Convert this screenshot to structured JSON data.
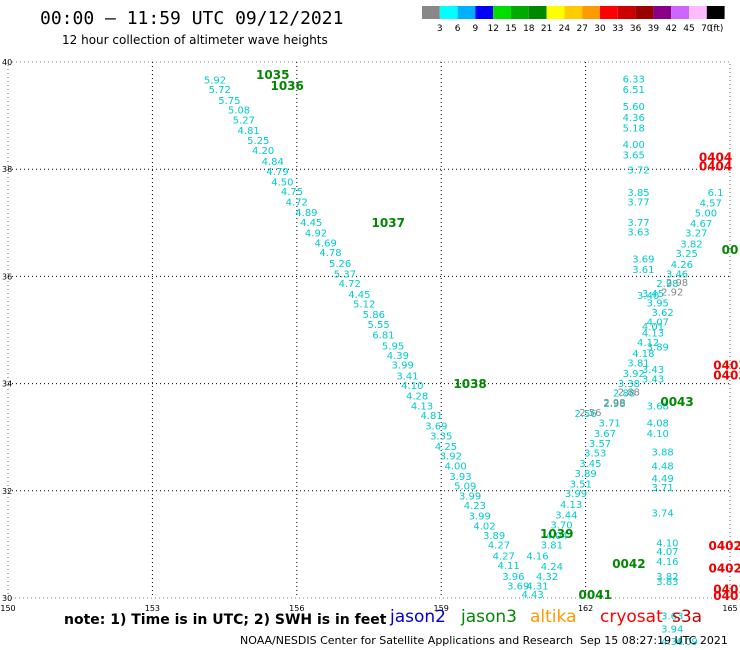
{
  "header": {
    "title": "00:00 – 11:59 UTC 09/12/2021",
    "subtitle": "12 hour collection of altimeter wave heights"
  },
  "colorbar": {
    "colors": [
      "#888888",
      "#00ffff",
      "#00b0ff",
      "#0000ff",
      "#00dd00",
      "#00aa00",
      "#008800",
      "#ffff00",
      "#ffcc00",
      "#ff9900",
      "#ff0000",
      "#cc0000",
      "#990000",
      "#880088",
      "#cc66ff",
      "#ffbbff",
      "#000000"
    ],
    "labels": [
      "3",
      "6",
      "9",
      "12",
      "15",
      "18",
      "21",
      "24",
      "27",
      "30",
      "33",
      "36",
      "39",
      "42",
      "45",
      "70"
    ],
    "unit": "(ft)"
  },
  "footer": {
    "note": "note:  1) Time is in UTC;  2) SWH is in feet",
    "satellites": [
      {
        "name": "jason2",
        "color": "#0000cc"
      },
      {
        "name": "jason3",
        "color": "#008800"
      },
      {
        "name": "altika",
        "color": "#ff9900"
      },
      {
        "name": "cryosat",
        "color": "#ff0000"
      },
      {
        "name": "s3a",
        "color": "#cc0000"
      }
    ],
    "credit": "NOAA/NESDIS Center for Satellite Applications and Research",
    "timestamp": "Sep 15 08:27:19 UTC 2021"
  },
  "chart_data": {
    "type": "scatter",
    "xlim": [
      150,
      165
    ],
    "ylim": [
      30,
      40
    ],
    "x_ticks": [
      150,
      153,
      156,
      159,
      162,
      165
    ],
    "y_ticks": [
      30,
      32,
      34,
      36,
      38,
      40
    ],
    "grid": true,
    "colors": {
      "wave": "#00cccc",
      "wave_low": "#888888",
      "time": "#008800",
      "time_red": "#ee0000"
    },
    "heights": [
      {
        "x": 154.3,
        "y": 39.6,
        "t": "5.92"
      },
      {
        "x": 154.4,
        "y": 39.42,
        "t": "5.72"
      },
      {
        "x": 154.6,
        "y": 39.22,
        "t": "5.75"
      },
      {
        "x": 154.8,
        "y": 39.04,
        "t": "5.08"
      },
      {
        "x": 154.9,
        "y": 38.85,
        "t": "5.27"
      },
      {
        "x": 155.0,
        "y": 38.66,
        "t": "4.81"
      },
      {
        "x": 155.2,
        "y": 38.47,
        "t": "5.25"
      },
      {
        "x": 155.3,
        "y": 38.28,
        "t": "4.20"
      },
      {
        "x": 155.5,
        "y": 38.08,
        "t": "4.84"
      },
      {
        "x": 155.6,
        "y": 37.89,
        "t": "4.79"
      },
      {
        "x": 155.7,
        "y": 37.7,
        "t": "4.50"
      },
      {
        "x": 155.9,
        "y": 37.52,
        "t": "4.75"
      },
      {
        "x": 156.0,
        "y": 37.32,
        "t": "4.72"
      },
      {
        "x": 156.2,
        "y": 37.13,
        "t": "4.89"
      },
      {
        "x": 156.3,
        "y": 36.94,
        "t": "4.45"
      },
      {
        "x": 156.4,
        "y": 36.74,
        "t": "4.92"
      },
      {
        "x": 156.6,
        "y": 36.56,
        "t": "4.69"
      },
      {
        "x": 156.7,
        "y": 36.38,
        "t": "4.78"
      },
      {
        "x": 156.9,
        "y": 36.18,
        "t": "5.26"
      },
      {
        "x": 157.0,
        "y": 35.98,
        "t": "5.37"
      },
      {
        "x": 157.1,
        "y": 35.8,
        "t": "4.72"
      },
      {
        "x": 157.3,
        "y": 35.6,
        "t": "4.45"
      },
      {
        "x": 157.4,
        "y": 35.42,
        "t": "5.12"
      },
      {
        "x": 157.6,
        "y": 35.22,
        "t": "5.86"
      },
      {
        "x": 157.7,
        "y": 35.04,
        "t": "5.55"
      },
      {
        "x": 157.8,
        "y": 34.84,
        "t": "6.81"
      },
      {
        "x": 158.0,
        "y": 34.64,
        "t": "5.95"
      },
      {
        "x": 158.1,
        "y": 34.46,
        "t": "4.39"
      },
      {
        "x": 158.2,
        "y": 34.28,
        "t": "3.99"
      },
      {
        "x": 158.3,
        "y": 34.08,
        "t": "3.41"
      },
      {
        "x": 158.4,
        "y": 33.9,
        "t": "4.10"
      },
      {
        "x": 158.5,
        "y": 33.7,
        "t": "4.28"
      },
      {
        "x": 158.6,
        "y": 33.52,
        "t": "4.13"
      },
      {
        "x": 158.8,
        "y": 33.34,
        "t": "4.81"
      },
      {
        "x": 158.9,
        "y": 33.14,
        "t": "3.69"
      },
      {
        "x": 159.0,
        "y": 32.96,
        "t": "3.35"
      },
      {
        "x": 159.1,
        "y": 32.76,
        "t": "4.25"
      },
      {
        "x": 159.2,
        "y": 32.58,
        "t": "3.92"
      },
      {
        "x": 159.3,
        "y": 32.4,
        "t": "4.00"
      },
      {
        "x": 159.4,
        "y": 32.2,
        "t": "3.93"
      },
      {
        "x": 159.5,
        "y": 32.02,
        "t": "5.09"
      },
      {
        "x": 159.6,
        "y": 31.84,
        "t": "3.99"
      },
      {
        "x": 159.7,
        "y": 31.66,
        "t": "4.23"
      },
      {
        "x": 159.8,
        "y": 31.46,
        "t": "3.99"
      },
      {
        "x": 159.9,
        "y": 31.28,
        "t": "4.02"
      },
      {
        "x": 160.1,
        "y": 31.1,
        "t": "3.89"
      },
      {
        "x": 160.2,
        "y": 30.92,
        "t": "4.27"
      },
      {
        "x": 160.3,
        "y": 30.72,
        "t": "4.27"
      },
      {
        "x": 160.4,
        "y": 30.54,
        "t": "4.11"
      },
      {
        "x": 160.5,
        "y": 30.34,
        "t": "3.96"
      },
      {
        "x": 160.6,
        "y": 30.16,
        "t": "3.69"
      },
      {
        "x": 161.0,
        "y": 30.16,
        "t": "4.31"
      },
      {
        "x": 160.9,
        "y": 30.0,
        "t": "4.43"
      },
      {
        "x": 161.2,
        "y": 30.34,
        "t": "4.32"
      },
      {
        "x": 161.3,
        "y": 30.52,
        "t": "4.24"
      },
      {
        "x": 161.0,
        "y": 30.72,
        "t": "4.16"
      },
      {
        "x": 161.3,
        "y": 30.92,
        "t": "3.81"
      },
      {
        "x": 161.4,
        "y": 31.1,
        "t": "4.04"
      },
      {
        "x": 161.5,
        "y": 31.3,
        "t": "3.70"
      },
      {
        "x": 161.6,
        "y": 31.48,
        "t": "3.44"
      },
      {
        "x": 161.7,
        "y": 31.68,
        "t": "4.13"
      },
      {
        "x": 161.8,
        "y": 31.88,
        "t": "3.99"
      },
      {
        "x": 161.9,
        "y": 32.06,
        "t": "3.51"
      },
      {
        "x": 162.0,
        "y": 32.26,
        "t": "3.89"
      },
      {
        "x": 162.1,
        "y": 32.44,
        "t": "3.45"
      },
      {
        "x": 162.2,
        "y": 32.64,
        "t": "3.53"
      },
      {
        "x": 162.3,
        "y": 32.82,
        "t": "3.57"
      },
      {
        "x": 162.4,
        "y": 33.0,
        "t": "3.67"
      },
      {
        "x": 162.5,
        "y": 33.2,
        "t": "3.71"
      },
      {
        "x": 162.0,
        "y": 33.38,
        "t": "2.56"
      },
      {
        "x": 162.6,
        "y": 33.56,
        "t": "2.98"
      },
      {
        "x": 162.8,
        "y": 33.76,
        "t": "2.88"
      },
      {
        "x": 162.9,
        "y": 33.94,
        "t": "3.38"
      },
      {
        "x": 163.0,
        "y": 34.12,
        "t": "3.92"
      },
      {
        "x": 163.1,
        "y": 34.32,
        "t": "3.81"
      },
      {
        "x": 163.2,
        "y": 34.5,
        "t": "4.18"
      },
      {
        "x": 163.3,
        "y": 34.7,
        "t": "4.12"
      },
      {
        "x": 163.4,
        "y": 34.88,
        "t": "4.13"
      },
      {
        "x": 163.5,
        "y": 35.08,
        "t": "4.07"
      },
      {
        "x": 163.6,
        "y": 35.26,
        "t": "3.62"
      },
      {
        "x": 163.5,
        "y": 35.44,
        "t": "3.95"
      },
      {
        "x": 163.4,
        "y": 35.62,
        "t": "3.45"
      },
      {
        "x": 163.7,
        "y": 35.8,
        "t": "2.98"
      },
      {
        "x": 163.9,
        "y": 35.98,
        "t": "3.46"
      },
      {
        "x": 164.0,
        "y": 36.16,
        "t": "4.26"
      },
      {
        "x": 164.1,
        "y": 36.36,
        "t": "3.25"
      },
      {
        "x": 164.2,
        "y": 36.54,
        "t": "3.82"
      },
      {
        "x": 164.3,
        "y": 36.74,
        "t": "3.27"
      },
      {
        "x": 164.4,
        "y": 36.92,
        "t": "4.67"
      },
      {
        "x": 164.5,
        "y": 37.12,
        "t": "5.00"
      },
      {
        "x": 164.6,
        "y": 37.3,
        "t": "4.57"
      },
      {
        "x": 164.7,
        "y": 37.5,
        "t": "6.1"
      },
      {
        "x": 163.0,
        "y": 39.62,
        "t": "6.33"
      },
      {
        "x": 163.0,
        "y": 39.42,
        "t": "6.51"
      },
      {
        "x": 163.0,
        "y": 39.1,
        "t": "5.60"
      },
      {
        "x": 163.0,
        "y": 38.9,
        "t": "4.36"
      },
      {
        "x": 163.0,
        "y": 38.7,
        "t": "5.18"
      },
      {
        "x": 163.0,
        "y": 38.4,
        "t": "4.00"
      },
      {
        "x": 163.0,
        "y": 38.2,
        "t": "3.65"
      },
      {
        "x": 163.1,
        "y": 37.92,
        "t": "3.72"
      },
      {
        "x": 163.1,
        "y": 37.5,
        "t": "3.85"
      },
      {
        "x": 163.1,
        "y": 37.32,
        "t": "3.77"
      },
      {
        "x": 163.1,
        "y": 36.94,
        "t": "3.77"
      },
      {
        "x": 163.1,
        "y": 36.76,
        "t": "3.63"
      },
      {
        "x": 163.2,
        "y": 36.26,
        "t": "3.69"
      },
      {
        "x": 163.2,
        "y": 36.06,
        "t": "3.61"
      },
      {
        "x": 163.3,
        "y": 35.58,
        "t": "3.40"
      },
      {
        "x": 163.4,
        "y": 35.0,
        "t": "4.01"
      },
      {
        "x": 163.5,
        "y": 34.62,
        "t": "3.89"
      },
      {
        "x": 163.4,
        "y": 34.2,
        "t": "3.43"
      },
      {
        "x": 163.4,
        "y": 34.02,
        "t": "3.43"
      },
      {
        "x": 163.5,
        "y": 33.52,
        "t": "3.68"
      },
      {
        "x": 163.5,
        "y": 33.2,
        "t": "4.08"
      },
      {
        "x": 163.5,
        "y": 33.0,
        "t": "4.10"
      },
      {
        "x": 163.6,
        "y": 32.66,
        "t": "3.88"
      },
      {
        "x": 163.6,
        "y": 32.4,
        "t": "4.48"
      },
      {
        "x": 163.6,
        "y": 32.16,
        "t": "4.49"
      },
      {
        "x": 163.6,
        "y": 32.0,
        "t": "3.71"
      },
      {
        "x": 163.6,
        "y": 31.52,
        "t": "3.74"
      },
      {
        "x": 163.7,
        "y": 30.96,
        "t": "4.10"
      },
      {
        "x": 163.7,
        "y": 30.8,
        "t": "4.07"
      },
      {
        "x": 163.7,
        "y": 30.62,
        "t": "4.16"
      },
      {
        "x": 163.7,
        "y": 30.34,
        "t": "3.82"
      },
      {
        "x": 163.7,
        "y": 30.24,
        "t": "3.83"
      },
      {
        "x": 163.8,
        "y": 29.6,
        "t": "3.63"
      },
      {
        "x": 163.8,
        "y": 29.36,
        "t": "3.94"
      },
      {
        "x": 163.8,
        "y": 29.12,
        "t": "4.34"
      },
      {
        "x": 164.1,
        "y": 29.12,
        "t": "4.09"
      }
    ],
    "low_heights": [
      {
        "x": 162.6,
        "y": 33.58,
        "t": "2.98"
      },
      {
        "x": 162.9,
        "y": 33.78,
        "t": "2.88"
      },
      {
        "x": 162.1,
        "y": 33.4,
        "t": "2.56"
      },
      {
        "x": 163.9,
        "y": 35.82,
        "t": "2.98"
      },
      {
        "x": 163.8,
        "y": 35.64,
        "t": "2.92"
      }
    ],
    "time_labels": [
      {
        "x": 155.5,
        "y": 39.68,
        "t": "1035",
        "c": "#008800"
      },
      {
        "x": 155.8,
        "y": 39.48,
        "t": "1036",
        "c": "#008800"
      },
      {
        "x": 157.9,
        "y": 36.92,
        "t": "1037",
        "c": "#008800"
      },
      {
        "x": 159.6,
        "y": 33.92,
        "t": "1038",
        "c": "#008800"
      },
      {
        "x": 161.4,
        "y": 31.12,
        "t": "1039",
        "c": "#008800"
      },
      {
        "x": 162.9,
        "y": 30.56,
        "t": "0042",
        "c": "#008800"
      },
      {
        "x": 162.2,
        "y": 29.98,
        "t": "0041",
        "c": "#008800"
      },
      {
        "x": 163.9,
        "y": 33.58,
        "t": "0043",
        "c": "#008800"
      },
      {
        "x": 165.0,
        "y": 36.42,
        "t": "00",
        "c": "#008800"
      },
      {
        "x": 164.7,
        "y": 38.14,
        "t": "0404",
        "c": "#ee0000"
      },
      {
        "x": 164.7,
        "y": 37.98,
        "t": "0404",
        "c": "#ee0000"
      },
      {
        "x": 165.0,
        "y": 34.26,
        "t": "0403",
        "c": "#ee0000"
      },
      {
        "x": 165.0,
        "y": 34.08,
        "t": "0403",
        "c": "#ee0000"
      },
      {
        "x": 164.9,
        "y": 30.9,
        "t": "0402",
        "c": "#ee0000"
      },
      {
        "x": 164.9,
        "y": 30.48,
        "t": "0402",
        "c": "#ee0000"
      },
      {
        "x": 165.0,
        "y": 30.08,
        "t": "0401",
        "c": "#ee0000"
      },
      {
        "x": 165.0,
        "y": 29.96,
        "t": "0401",
        "c": "#ee0000"
      }
    ]
  }
}
